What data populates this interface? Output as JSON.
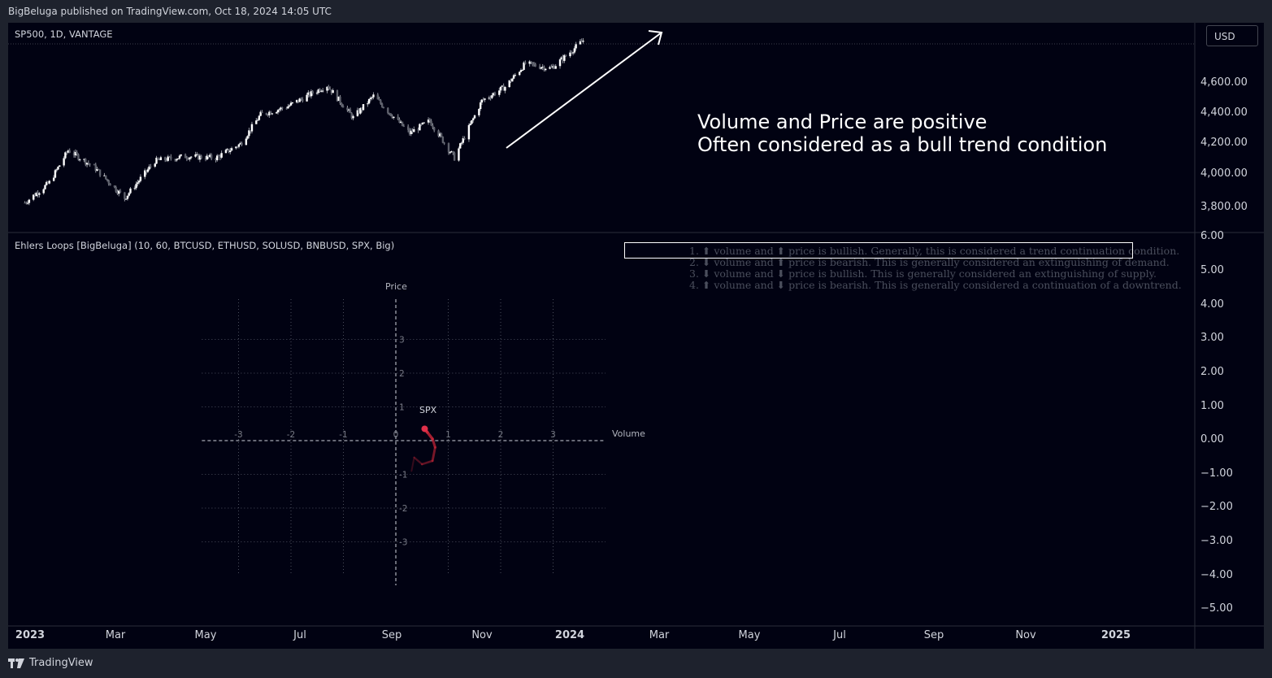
{
  "header": {
    "text": "BigBeluga published on TradingView.com, Oct 18, 2024 14:05 UTC"
  },
  "main_pane": {
    "symbol_label": "SP500, 1D, VANTAGE",
    "currency": "USD",
    "annotation_line1": "Volume and Price are positive",
    "annotation_line2": "Often considered as a bull trend condition",
    "y_ticks": [
      "4,600.00",
      "4,400.00",
      "4,200.00",
      "4,000.00",
      "3,800.00"
    ]
  },
  "indicator_pane": {
    "title": "Ehlers Loops [BigBeluga] (10, 60, BTCUSD, ETHUSD, SOLUSD, BNBUSD, SPX, Big)",
    "legend": [
      "1. ⬆ volume and ⬆ price is bullish.  Generally, this is considered a trend continuation condition.",
      "2. ⬇ volume and ⬆ price is bearish. This is generally considered an extinguishing of demand.",
      "3. ⬇ volume and ⬇ price is bullish.  This is generally considered an extinguishing of supply.",
      "4. ⬆ volume and ⬇ price is bearish. This is generally considered a continuation of a downtrend."
    ],
    "y_ticks": [
      "6.00",
      "5.00",
      "4.00",
      "3.00",
      "2.00",
      "1.00",
      "0.00",
      "−1.00",
      "−2.00",
      "−3.00",
      "−4.00",
      "−5.00"
    ],
    "loop_chart": {
      "x_axis_label": "Volume",
      "y_axis_label": "Price",
      "x_ticks": [
        "-3",
        "-2",
        "-1",
        "0",
        "1",
        "2",
        "3"
      ],
      "y_ticks": [
        "3",
        "2",
        "1",
        "-1",
        "-2",
        "-3"
      ],
      "series_label": "SPX"
    }
  },
  "time_axis": {
    "labels": [
      {
        "text": "2023",
        "bold": true
      },
      {
        "text": "Mar",
        "bold": false
      },
      {
        "text": "May",
        "bold": false
      },
      {
        "text": "Jul",
        "bold": false
      },
      {
        "text": "Sep",
        "bold": false
      },
      {
        "text": "Nov",
        "bold": false
      },
      {
        "text": "2024",
        "bold": true
      },
      {
        "text": "Mar",
        "bold": false
      },
      {
        "text": "May",
        "bold": false
      },
      {
        "text": "Jul",
        "bold": false
      },
      {
        "text": "Sep",
        "bold": false
      },
      {
        "text": "Nov",
        "bold": false
      },
      {
        "text": "2025",
        "bold": true
      }
    ]
  },
  "footer": {
    "brand": "TradingView"
  },
  "chart_data": [
    {
      "type": "line",
      "title": "SP500, 1D, VANTAGE",
      "x": [
        "2023-01-03",
        "2023-01-20",
        "2023-02-02",
        "2023-02-20",
        "2023-03-13",
        "2023-04-03",
        "2023-04-24",
        "2023-05-15",
        "2023-06-01",
        "2023-06-15",
        "2023-07-03",
        "2023-07-31",
        "2023-08-18",
        "2023-09-01",
        "2023-09-26",
        "2023-10-10",
        "2023-10-27",
        "2023-11-15",
        "2023-12-01",
        "2023-12-15",
        "2024-01-02",
        "2024-01-12",
        "2024-01-24"
      ],
      "series": [
        {
          "values": [
            3830,
            3960,
            4170,
            4060,
            3860,
            4100,
            4130,
            4120,
            4210,
            4400,
            4450,
            4590,
            4380,
            4520,
            4280,
            4360,
            4120,
            4490,
            4580,
            4730,
            4700,
            4780,
            4880
          ]
        }
      ],
      "ylim": [
        3750,
        4880
      ],
      "grid": false
    },
    {
      "type": "line",
      "title": "Ehlers Loops [BigBeluga] (10, 60, BTCUSD, ETHUSD, SOLUSD, BNBUSD, SPX, Big)",
      "xlabel": "Volume",
      "ylabel": "Price",
      "xlim": [
        -3.7,
        4.0
      ],
      "ylim": [
        -4.0,
        4.0
      ],
      "grid": true,
      "series": [
        {
          "name": "SPX",
          "x": [
            0.3,
            0.35,
            0.5,
            0.7,
            0.75,
            0.7,
            0.6,
            0.55
          ],
          "y": [
            -0.9,
            -0.5,
            -0.7,
            -0.6,
            -0.2,
            0.05,
            0.25,
            0.35
          ],
          "color": "#d1283a"
        }
      ]
    }
  ]
}
